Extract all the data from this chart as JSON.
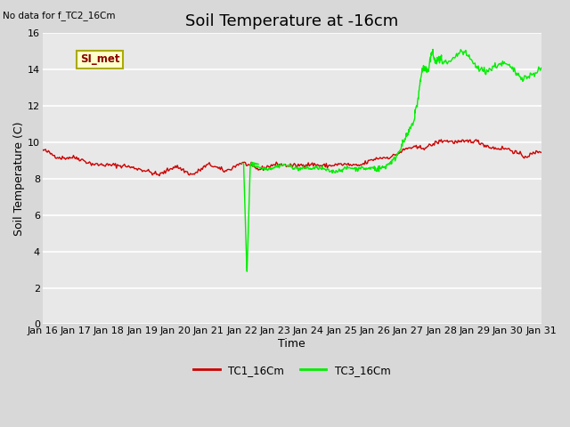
{
  "title": "Soil Temperature at -16cm",
  "xlabel": "Time",
  "ylabel": "Soil Temperature (C)",
  "top_left_text": "No data for f_TC2_16Cm",
  "annotation_box": "SI_met",
  "ylim": [
    0,
    16
  ],
  "yticks": [
    0,
    2,
    4,
    6,
    8,
    10,
    12,
    14,
    16
  ],
  "xtick_labels": [
    "Jan 16",
    "Jan 17",
    "Jan 18",
    "Jan 19",
    "Jan 20",
    "Jan 21",
    "Jan 22",
    "Jan 23",
    "Jan 24",
    "Jan 25",
    "Jan 26",
    "Jan 27",
    "Jan 28",
    "Jan 29",
    "Jan 30",
    "Jan 31"
  ],
  "bg_color": "#d8d8d8",
  "plot_bg_color": "#e8e8e8",
  "tc1_color": "#cc0000",
  "tc3_color": "#00ee00",
  "legend_tc1": "TC1_16Cm",
  "legend_tc3": "TC3_16Cm",
  "title_fontsize": 13,
  "axis_label_fontsize": 9,
  "tick_fontsize": 8
}
